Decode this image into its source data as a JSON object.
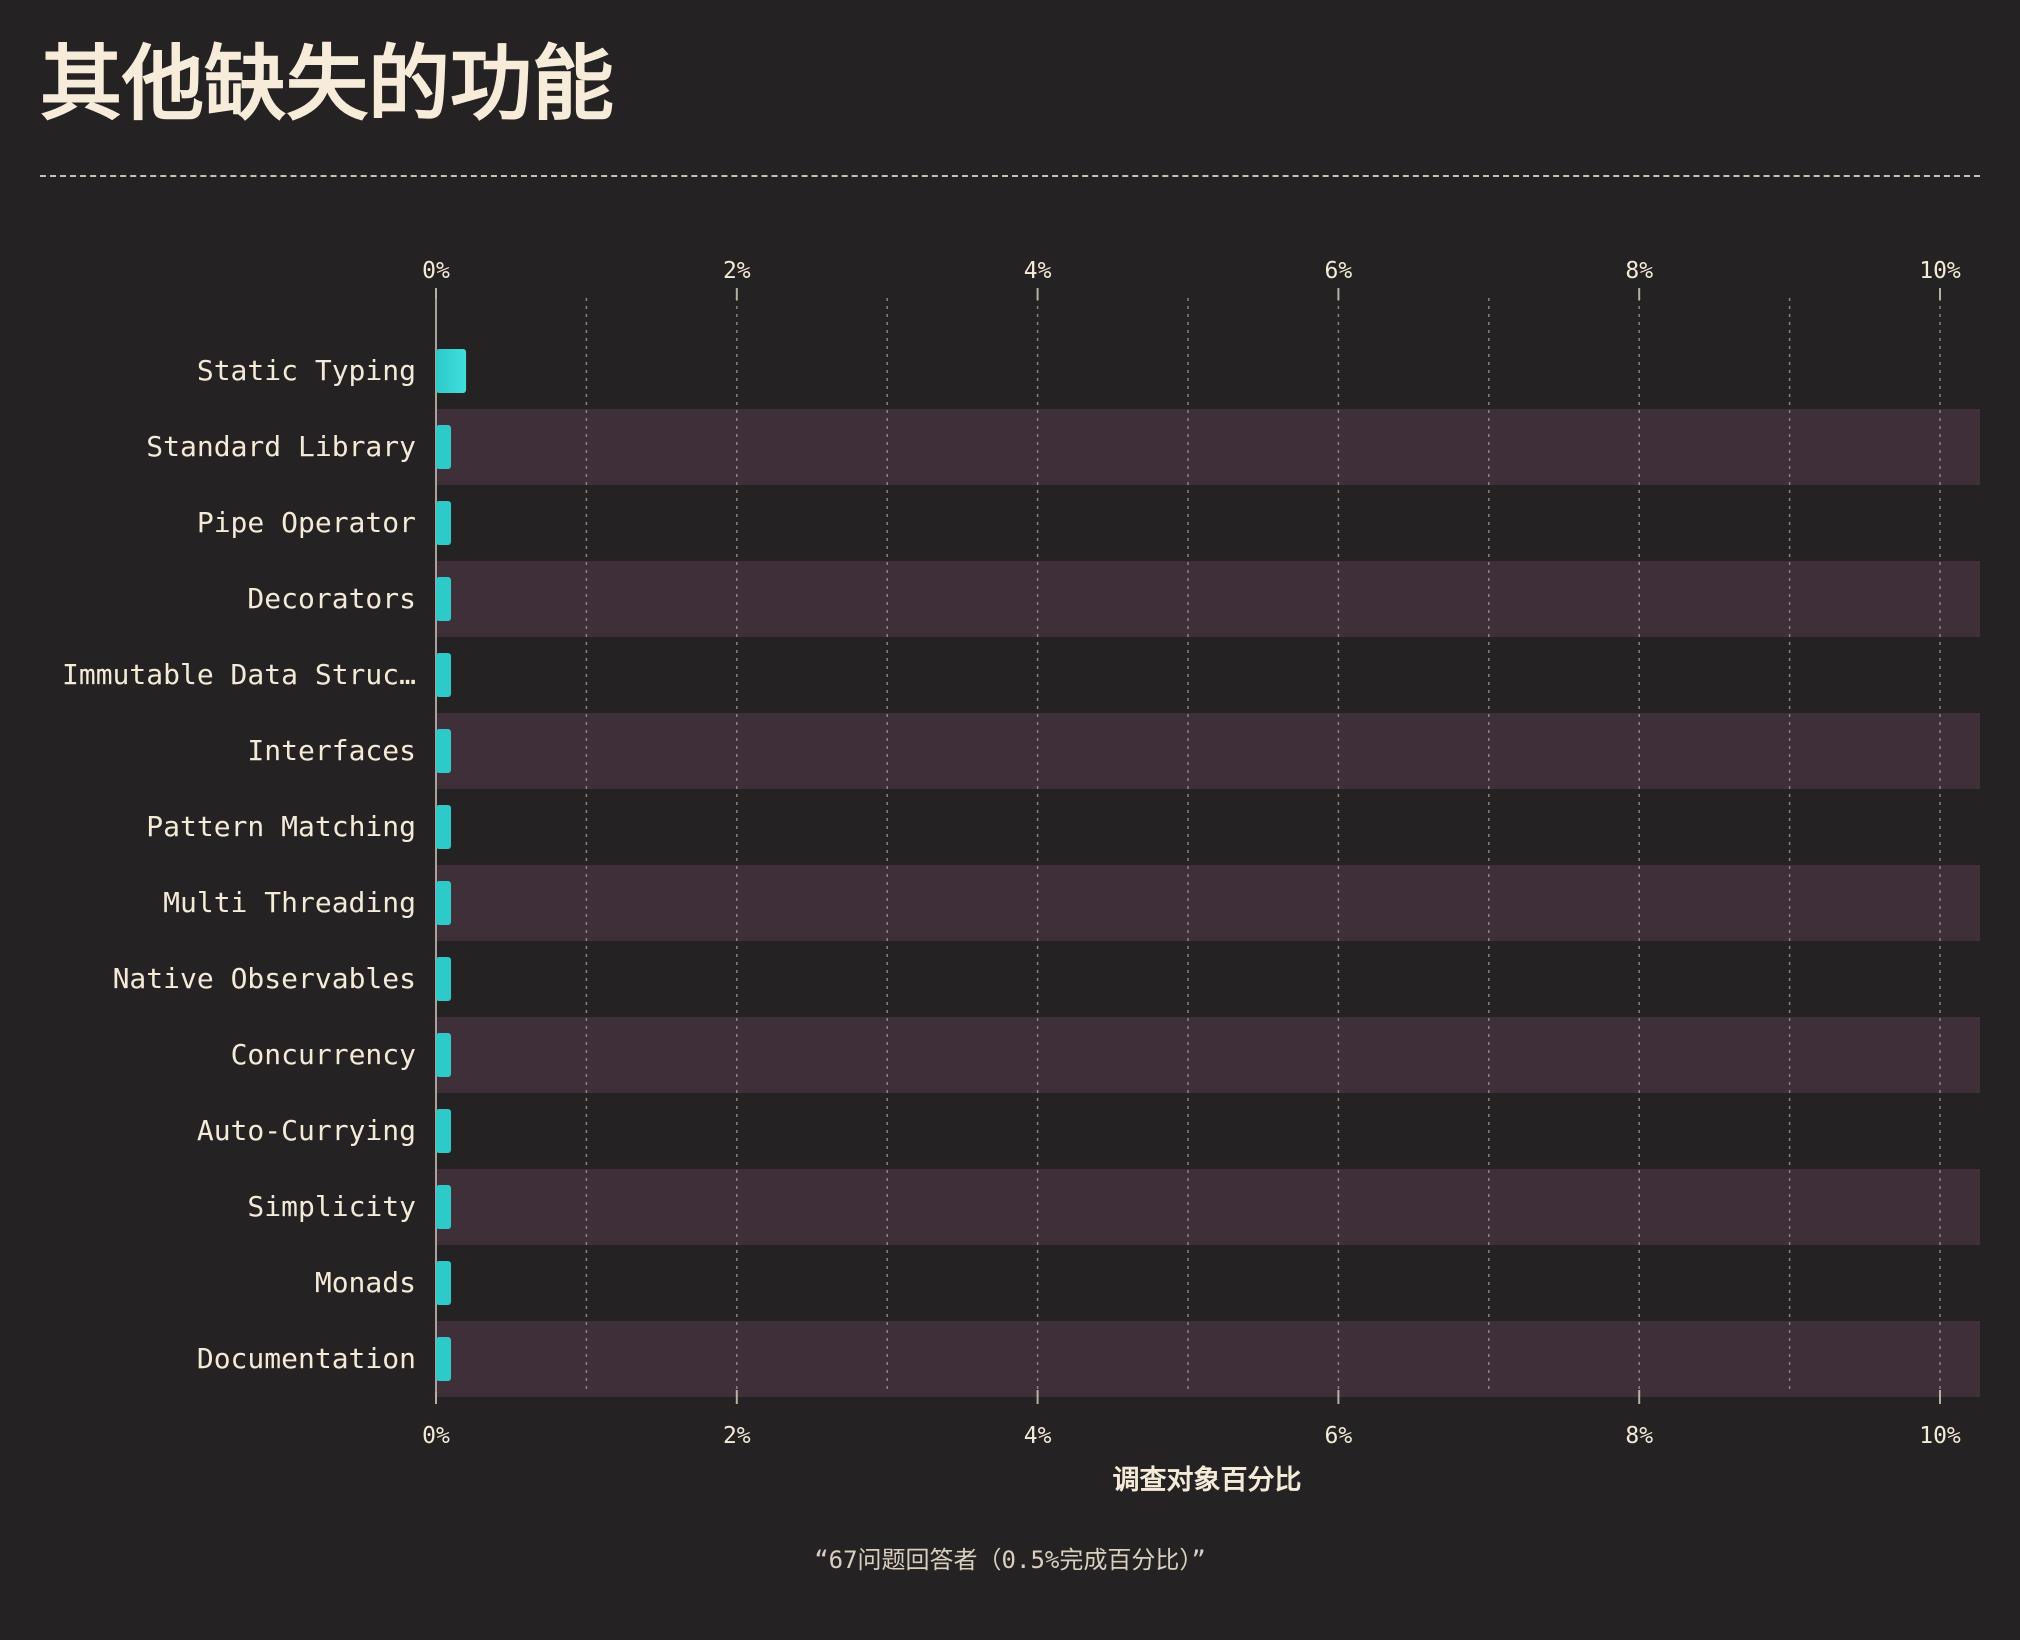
{
  "page": {
    "title": "其他缺失的功能",
    "footnote": "“67问题回答者（0.5%完成百分比）”"
  },
  "colors": {
    "background": "#252223",
    "band": "#3e2f38",
    "bar": "#2ec9c9",
    "bar_highlight": "#3fe0dc",
    "text": "#f3ead8",
    "grid": "#8a8282"
  },
  "chart_data": {
    "type": "bar",
    "orientation": "horizontal",
    "title": "",
    "xlabel": "调查对象百分比",
    "ylabel": "",
    "xlim": [
      0,
      10.3
    ],
    "x_ticks": [
      "0%",
      "2%",
      "4%",
      "6%",
      "8%",
      "10%"
    ],
    "x_tick_values": [
      0,
      2,
      4,
      6,
      8,
      10
    ],
    "minor_grid_values": [
      1,
      3,
      5,
      7,
      9
    ],
    "grid": true,
    "tick_positions": [
      "top",
      "bottom"
    ],
    "categories": [
      "Static Typing",
      "Standard Library",
      "Pipe Operator",
      "Decorators",
      "Immutable Data Struc…",
      "Interfaces",
      "Pattern Matching",
      "Multi Threading",
      "Native Observables",
      "Concurrency",
      "Auto-Currying",
      "Simplicity",
      "Monads",
      "Documentation"
    ],
    "values": [
      0.2,
      0.1,
      0.1,
      0.1,
      0.1,
      0.1,
      0.1,
      0.1,
      0.1,
      0.1,
      0.1,
      0.1,
      0.1,
      0.1
    ]
  }
}
